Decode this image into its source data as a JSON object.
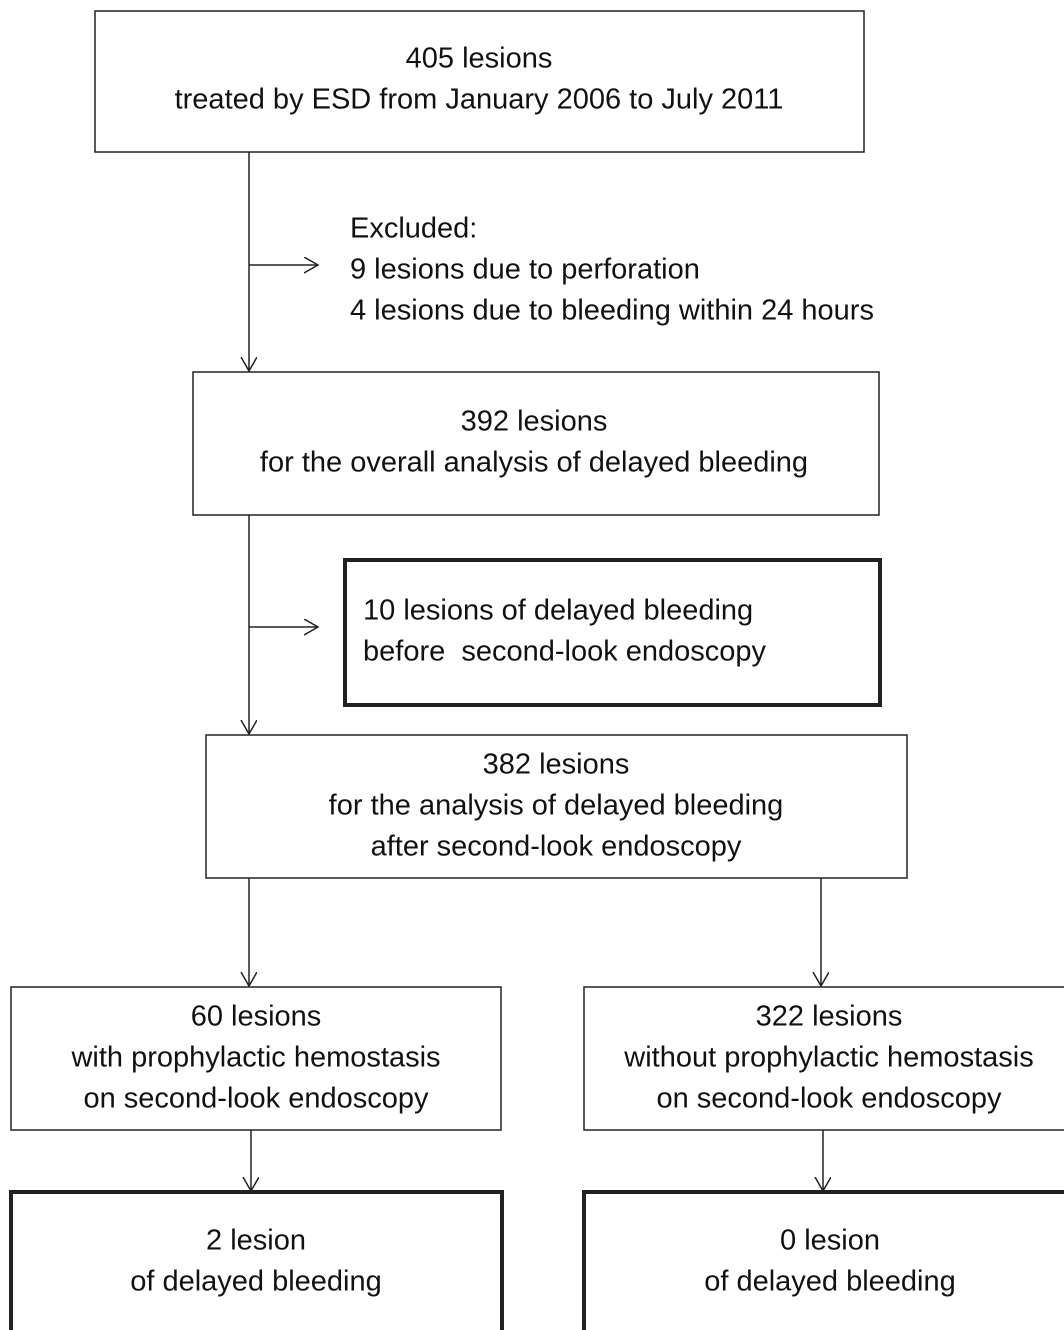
{
  "nodes": [
    {
      "lines": [
        "405 lesions",
        "treated by ESD from January 2006 to July 2011"
      ]
    },
    {
      "lines": [
        "Excluded:",
        "9 lesions due to perforation",
        "4 lesions due to bleeding within 24 hours"
      ]
    },
    {
      "lines": [
        "392 lesions",
        "for the overall analysis of delayed bleeding"
      ]
    },
    {
      "lines": [
        "10 lesions of delayed bleeding",
        "before  second-look endoscopy"
      ]
    },
    {
      "lines": [
        "382 lesions",
        "for the analysis of delayed bleeding",
        "after second-look endoscopy"
      ]
    },
    {
      "lines": [
        "60 lesions",
        "with prophylactic hemostasis",
        "on second-look endoscopy"
      ]
    },
    {
      "lines": [
        "322 lesions",
        "without prophylactic hemostasis",
        "on second-look endoscopy"
      ]
    },
    {
      "lines": [
        "2 lesion",
        "of delayed bleeding"
      ]
    },
    {
      "lines": [
        "0 lesion",
        "of delayed bleeding"
      ]
    }
  ]
}
